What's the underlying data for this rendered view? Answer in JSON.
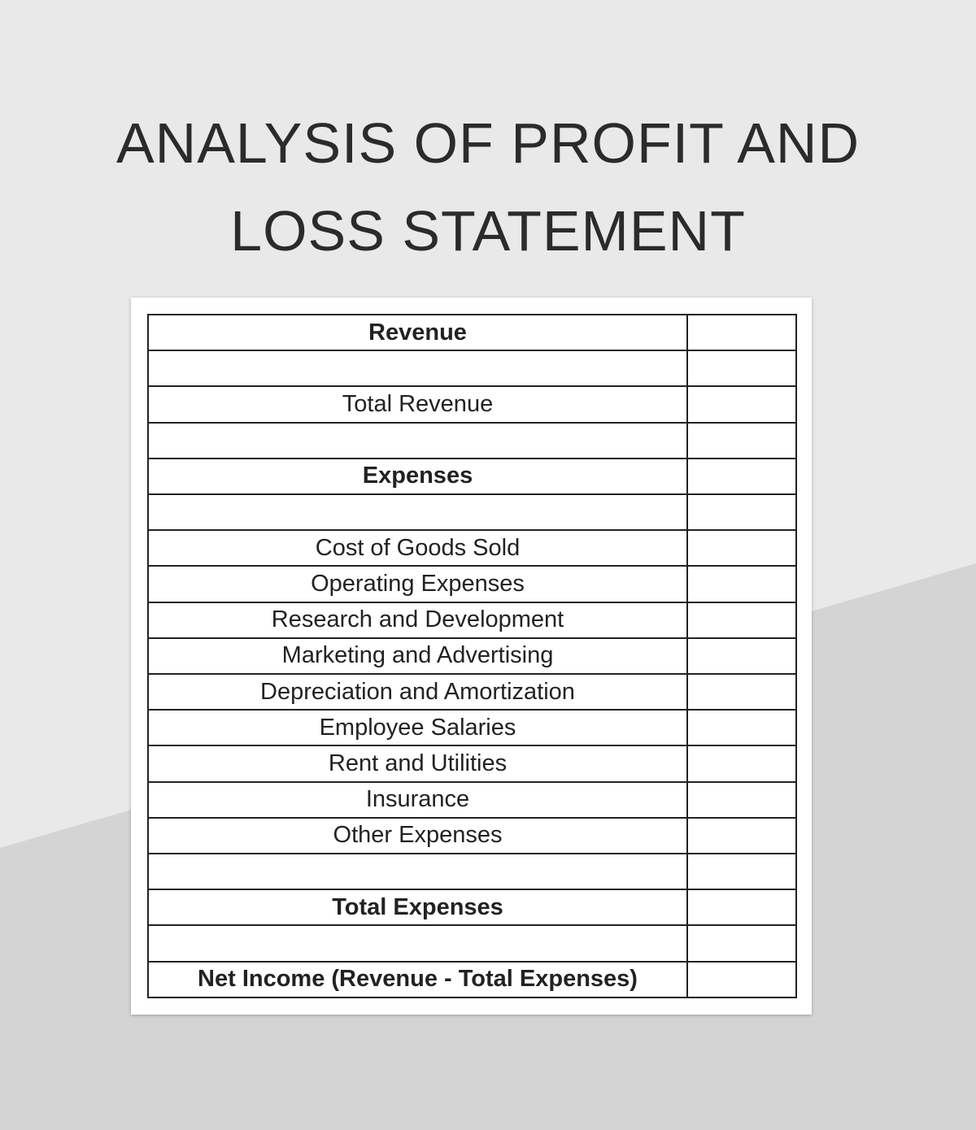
{
  "page": {
    "title_lines": [
      "ANALYSIS OF PROFIT AND",
      "LOSS STATEMENT"
    ]
  },
  "colors": {
    "background_light": "#e9e9e9",
    "background_dark": "#d4d4d4",
    "text": "#222222",
    "card": "#ffffff"
  },
  "statement": {
    "rows": [
      {
        "label": "Revenue",
        "value": "",
        "bold": true
      },
      {
        "label": "",
        "value": "",
        "bold": false
      },
      {
        "label": "Total Revenue",
        "value": "",
        "bold": false
      },
      {
        "label": "",
        "value": "",
        "bold": false
      },
      {
        "label": "Expenses",
        "value": "",
        "bold": true
      },
      {
        "label": "",
        "value": "",
        "bold": false
      },
      {
        "label": "Cost of Goods Sold",
        "value": "",
        "bold": false
      },
      {
        "label": "Operating Expenses",
        "value": "",
        "bold": false
      },
      {
        "label": "Research and Development",
        "value": "",
        "bold": false
      },
      {
        "label": "Marketing and Advertising",
        "value": "",
        "bold": false
      },
      {
        "label": "Depreciation and Amortization",
        "value": "",
        "bold": false
      },
      {
        "label": "Employee Salaries",
        "value": "",
        "bold": false
      },
      {
        "label": "Rent and Utilities",
        "value": "",
        "bold": false
      },
      {
        "label": "Insurance",
        "value": "",
        "bold": false
      },
      {
        "label": "Other Expenses",
        "value": "",
        "bold": false
      },
      {
        "label": "",
        "value": "",
        "bold": false
      },
      {
        "label": "Total Expenses",
        "value": "",
        "bold": true
      },
      {
        "label": "",
        "value": "",
        "bold": false
      },
      {
        "label": "Net Income (Revenue - Total Expenses)",
        "value": "",
        "bold": true
      }
    ]
  }
}
